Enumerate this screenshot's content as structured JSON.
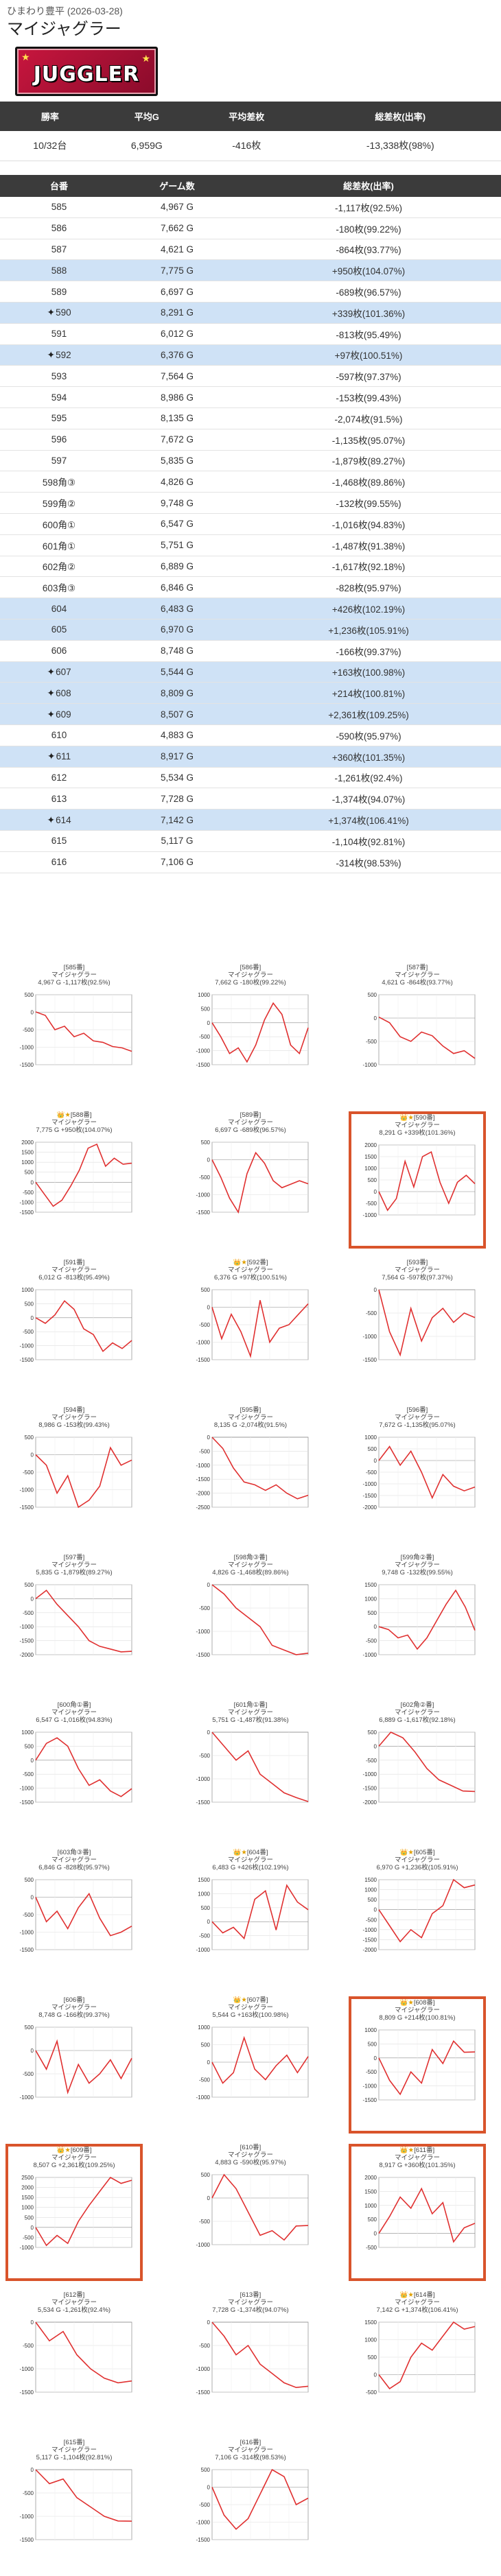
{
  "breadcrumb": "ひまわり豊平 (2026-03-28)",
  "title": "マイジャグラー",
  "logo": {
    "text": "JUGGLER",
    "colors": {
      "bg": "#c8163e",
      "star": "#ffe34d"
    }
  },
  "summary": {
    "headers": [
      "勝率",
      "平均G",
      "平均差枚",
      "総差枚(出率)"
    ],
    "values": [
      "10/32台",
      "6,959G",
      "-416枚",
      "-13,338枚(98%)"
    ]
  },
  "units_headers": [
    "台番",
    "ゲーム数",
    "総差枚(出率)"
  ],
  "units": [
    {
      "no": "585",
      "star": false,
      "g": "4,967 G",
      "diff": "-1,117枚(92.5%)",
      "hl": false,
      "series": [
        10,
        -90,
        -500,
        -400,
        -700,
        -600,
        -820,
        -860,
        -980,
        -1020,
        -1117
      ]
    },
    {
      "no": "586",
      "star": false,
      "g": "7,662 G",
      "diff": "-180枚(99.22%)",
      "hl": false,
      "series": [
        0,
        -500,
        -1100,
        -900,
        -1400,
        -800,
        100,
        700,
        300,
        -800,
        -1100,
        -180
      ]
    },
    {
      "no": "587",
      "star": false,
      "g": "4,621 G",
      "diff": "-864枚(93.77%)",
      "hl": false,
      "series": [
        20,
        -100,
        -400,
        -500,
        -300,
        -380,
        -600,
        -760,
        -700,
        -864
      ]
    },
    {
      "no": "588",
      "star": false,
      "g": "7,775 G",
      "diff": "+950枚(104.07%)",
      "hl": true,
      "series": [
        0,
        -600,
        -1200,
        -900,
        -200,
        600,
        1700,
        1900,
        800,
        1200,
        900,
        950
      ]
    },
    {
      "no": "589",
      "star": false,
      "g": "6,697 G",
      "diff": "-689枚(96.57%)",
      "hl": false,
      "series": [
        0,
        -500,
        -1100,
        -1500,
        -400,
        200,
        -100,
        -600,
        -800,
        -700,
        -600,
        -689
      ]
    },
    {
      "no": "590",
      "star": true,
      "g": "8,291 G",
      "diff": "+339枚(101.36%)",
      "hl": true,
      "series": [
        0,
        -800,
        -300,
        1300,
        200,
        1500,
        1700,
        400,
        -500,
        400,
        700,
        339
      ]
    },
    {
      "no": "591",
      "star": false,
      "g": "6,012 G",
      "diff": "-813枚(95.49%)",
      "hl": false,
      "series": [
        0,
        -200,
        100,
        600,
        300,
        -400,
        -600,
        -1200,
        -900,
        -1100,
        -813
      ]
    },
    {
      "no": "592",
      "star": true,
      "g": "6,376 G",
      "diff": "+97枚(100.51%)",
      "hl": true,
      "series": [
        0,
        -900,
        -200,
        -700,
        -1400,
        200,
        -1000,
        -600,
        -500,
        -200,
        97
      ]
    },
    {
      "no": "593",
      "star": false,
      "g": "7,564 G",
      "diff": "-597枚(97.37%)",
      "hl": false,
      "series": [
        0,
        -900,
        -1400,
        -400,
        -1100,
        -600,
        -400,
        -700,
        -500,
        -597
      ]
    },
    {
      "no": "594",
      "star": false,
      "g": "8,986 G",
      "diff": "-153枚(99.43%)",
      "hl": false,
      "series": [
        0,
        -300,
        -1100,
        -600,
        -1500,
        -1300,
        -900,
        200,
        -300,
        -153
      ]
    },
    {
      "no": "595",
      "star": false,
      "g": "8,135 G",
      "diff": "-2,074枚(91.5%)",
      "hl": false,
      "series": [
        0,
        -400,
        -1100,
        -1600,
        -1700,
        -1900,
        -1700,
        -2000,
        -2200,
        -2074
      ]
    },
    {
      "no": "596",
      "star": false,
      "g": "7,672 G",
      "diff": "-1,135枚(95.07%)",
      "hl": false,
      "series": [
        0,
        600,
        -200,
        400,
        -500,
        -1600,
        -600,
        -1100,
        -1300,
        -1135
      ]
    },
    {
      "no": "597",
      "star": false,
      "g": "5,835 G",
      "diff": "-1,879枚(89.27%)",
      "hl": false,
      "series": [
        0,
        300,
        -200,
        -600,
        -1000,
        -1500,
        -1700,
        -1800,
        -1900,
        -1879
      ]
    },
    {
      "no": "598角③",
      "star": false,
      "g": "4,826 G",
      "diff": "-1,468枚(89.86%)",
      "hl": false,
      "series": [
        0,
        -200,
        -500,
        -700,
        -900,
        -1300,
        -1400,
        -1500,
        -1468
      ]
    },
    {
      "no": "599角②",
      "star": false,
      "g": "9,748 G",
      "diff": "-132枚(99.55%)",
      "hl": false,
      "series": [
        0,
        -100,
        -400,
        -300,
        -800,
        -400,
        200,
        800,
        1300,
        700,
        -132
      ]
    },
    {
      "no": "600角①",
      "star": false,
      "g": "6,547 G",
      "diff": "-1,016枚(94.83%)",
      "hl": false,
      "series": [
        0,
        600,
        800,
        500,
        -300,
        -900,
        -700,
        -1100,
        -1300,
        -1016
      ]
    },
    {
      "no": "601角①",
      "star": false,
      "g": "5,751 G",
      "diff": "-1,487枚(91.38%)",
      "hl": false,
      "series": [
        0,
        -300,
        -600,
        -400,
        -900,
        -1100,
        -1300,
        -1400,
        -1487
      ]
    },
    {
      "no": "602角②",
      "star": false,
      "g": "6,889 G",
      "diff": "-1,617枚(92.18%)",
      "hl": false,
      "series": [
        0,
        500,
        300,
        -200,
        -800,
        -1200,
        -1400,
        -1600,
        -1617
      ]
    },
    {
      "no": "603角③",
      "star": false,
      "g": "6,846 G",
      "diff": "-828枚(95.97%)",
      "hl": false,
      "series": [
        0,
        -700,
        -400,
        -900,
        -300,
        100,
        -600,
        -1100,
        -1000,
        -828
      ]
    },
    {
      "no": "604",
      "star": false,
      "g": "6,483 G",
      "diff": "+426枚(102.19%)",
      "hl": true,
      "series": [
        0,
        -400,
        -200,
        -600,
        800,
        1100,
        -300,
        1300,
        700,
        426
      ]
    },
    {
      "no": "605",
      "star": false,
      "g": "6,970 G",
      "diff": "+1,236枚(105.91%)",
      "hl": true,
      "series": [
        0,
        -800,
        -1600,
        -1000,
        -1400,
        -200,
        200,
        1500,
        1100,
        1236
      ]
    },
    {
      "no": "606",
      "star": false,
      "g": "8,748 G",
      "diff": "-166枚(99.37%)",
      "hl": false,
      "series": [
        0,
        -400,
        200,
        -900,
        -300,
        -700,
        -500,
        -200,
        -600,
        -166
      ]
    },
    {
      "no": "607",
      "star": true,
      "g": "5,544 G",
      "diff": "+163枚(100.98%)",
      "hl": true,
      "series": [
        0,
        -600,
        -300,
        700,
        -200,
        -500,
        -100,
        200,
        -300,
        163
      ]
    },
    {
      "no": "608",
      "star": true,
      "g": "8,809 G",
      "diff": "+214枚(100.81%)",
      "hl": true,
      "series": [
        0,
        -800,
        -1300,
        -500,
        -900,
        300,
        -200,
        600,
        200,
        214
      ]
    },
    {
      "no": "609",
      "star": true,
      "g": "8,507 G",
      "diff": "+2,361枚(109.25%)",
      "hl": true,
      "series": [
        0,
        -900,
        -400,
        -800,
        300,
        1100,
        1800,
        2500,
        2200,
        2361
      ]
    },
    {
      "no": "610",
      "star": false,
      "g": "4,883 G",
      "diff": "-590枚(95.97%)",
      "hl": false,
      "series": [
        0,
        500,
        200,
        -300,
        -800,
        -700,
        -900,
        -600,
        -590
      ]
    },
    {
      "no": "611",
      "star": true,
      "g": "8,917 G",
      "diff": "+360枚(101.35%)",
      "hl": true,
      "series": [
        0,
        600,
        1300,
        900,
        1600,
        700,
        1100,
        -300,
        200,
        360
      ]
    },
    {
      "no": "612",
      "star": false,
      "g": "5,534 G",
      "diff": "-1,261枚(92.4%)",
      "hl": false,
      "series": [
        0,
        -400,
        -200,
        -700,
        -1000,
        -1200,
        -1300,
        -1261
      ]
    },
    {
      "no": "613",
      "star": false,
      "g": "7,728 G",
      "diff": "-1,374枚(94.07%)",
      "hl": false,
      "series": [
        0,
        -300,
        -700,
        -500,
        -900,
        -1100,
        -1300,
        -1400,
        -1374
      ]
    },
    {
      "no": "614",
      "star": true,
      "g": "7,142 G",
      "diff": "+1,374枚(106.41%)",
      "hl": true,
      "series": [
        0,
        -400,
        -200,
        500,
        900,
        700,
        1100,
        1500,
        1300,
        1374
      ]
    },
    {
      "no": "615",
      "star": false,
      "g": "5,117 G",
      "diff": "-1,104枚(92.81%)",
      "hl": false,
      "series": [
        0,
        -300,
        -200,
        -600,
        -800,
        -1000,
        -1100,
        -1104
      ]
    },
    {
      "no": "616",
      "star": false,
      "g": "7,106 G",
      "diff": "-314枚(98.53%)",
      "hl": false,
      "series": [
        0,
        -800,
        -1200,
        -900,
        -200,
        500,
        300,
        -500,
        -314
      ]
    }
  ],
  "chart_model": "マイジャグラー",
  "colors": {
    "header_bg": "#3b3b3b",
    "highlight_row": "#cfe2f6",
    "line": "#e03030",
    "box_border": "#d9542b"
  }
}
